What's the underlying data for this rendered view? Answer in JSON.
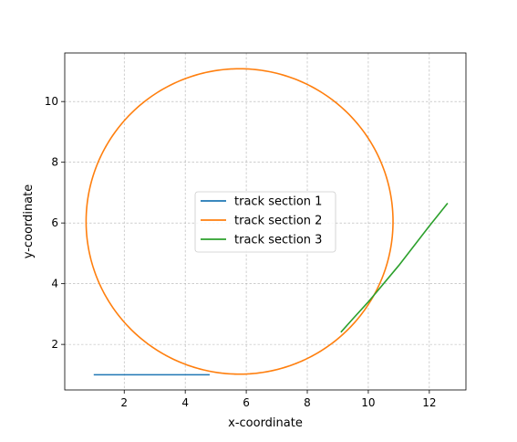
{
  "chart_data": {
    "type": "line",
    "title": "",
    "xlabel": "x-coordinate",
    "ylabel": "y-coordinate",
    "xlim": [
      0.05,
      13.2
    ],
    "ylim": [
      0.5,
      11.6
    ],
    "xticks": [
      2,
      4,
      6,
      8,
      10,
      12
    ],
    "yticks": [
      2,
      4,
      6,
      8,
      10
    ],
    "grid": true,
    "legend_position": "center",
    "series": [
      {
        "name": "track section 1",
        "color": "#1f77b4",
        "shape": "line",
        "x": [
          1.0,
          4.8
        ],
        "y": [
          1.0,
          1.0
        ]
      },
      {
        "name": "track section 2",
        "color": "#ff7f0e",
        "shape": "circle",
        "center": [
          5.78,
          6.05
        ],
        "radius": 5.03,
        "start_point": [
          4.8,
          1.0
        ],
        "end_point": [
          9.4,
          2.8
        ]
      },
      {
        "name": "track section 3",
        "color": "#2ca02c",
        "shape": "line",
        "x": [
          9.1,
          9.5,
          10.0,
          11.0,
          12.0,
          12.6
        ],
        "y": [
          2.4,
          2.85,
          3.4,
          4.6,
          5.9,
          6.65
        ]
      }
    ]
  }
}
